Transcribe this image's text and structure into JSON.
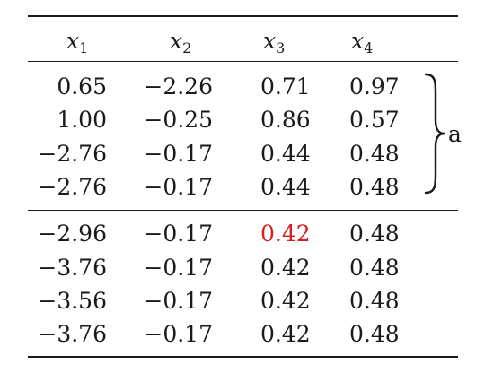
{
  "table": {
    "headers": [
      {
        "symbol": "x",
        "sub": "1"
      },
      {
        "symbol": "x",
        "sub": "2"
      },
      {
        "symbol": "x",
        "sub": "3"
      },
      {
        "symbol": "x",
        "sub": "4"
      }
    ],
    "group1": [
      [
        "0.65",
        "−2.26",
        "0.71",
        "0.97"
      ],
      [
        "1.00",
        "−0.25",
        "0.86",
        "0.57"
      ],
      [
        "−2.76",
        "−0.17",
        "0.44",
        "0.48"
      ],
      [
        "−2.76",
        "−0.17",
        "0.44",
        "0.48"
      ]
    ],
    "group2": [
      [
        "−2.96",
        "−0.17",
        "0.42",
        "0.48"
      ],
      [
        "−3.76",
        "−0.17",
        "0.42",
        "0.48"
      ],
      [
        "−3.56",
        "−0.17",
        "0.42",
        "0.48"
      ],
      [
        "−3.76",
        "−0.17",
        "0.42",
        "0.48"
      ]
    ],
    "brace_label": "a",
    "highlight_color": "#d42020"
  }
}
